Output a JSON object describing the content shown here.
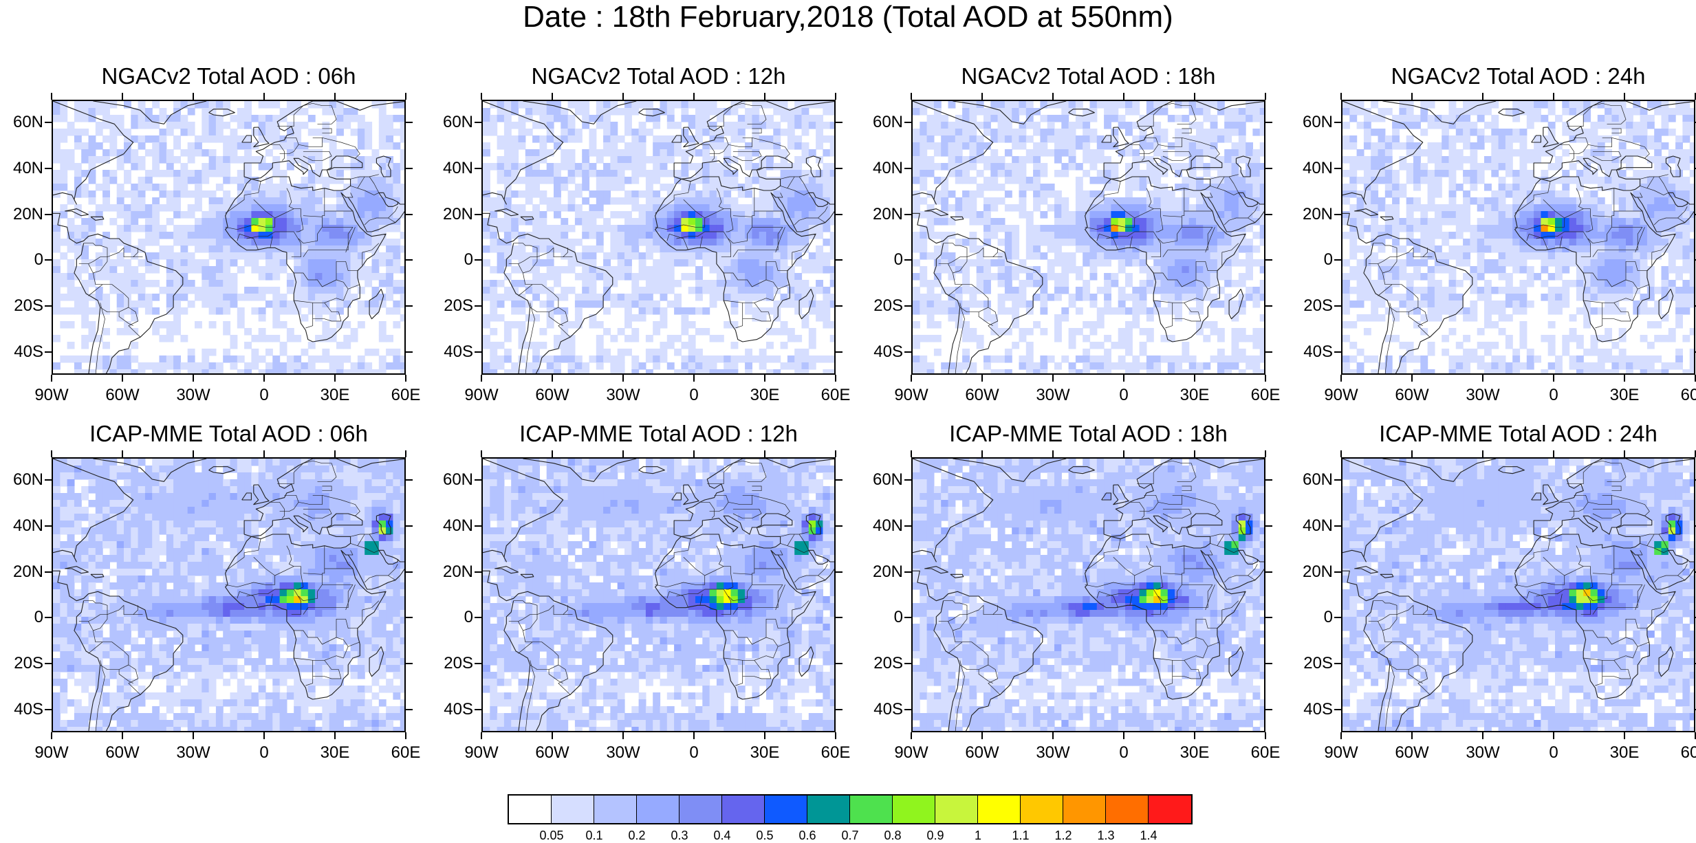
{
  "main_title": "Date : 18th February,2018 (Total AOD at 550nm)",
  "panels": [
    {
      "title": "NGACv2 Total AOD : 06h"
    },
    {
      "title": "NGACv2 Total AOD : 12h"
    },
    {
      "title": "NGACv2 Total AOD : 18h"
    },
    {
      "title": "NGACv2 Total AOD : 24h"
    },
    {
      "title": "ICAP-MME Total AOD : 06h"
    },
    {
      "title": "ICAP-MME Total AOD : 12h"
    },
    {
      "title": "ICAP-MME Total AOD : 18h"
    },
    {
      "title": "ICAP-MME Total AOD : 24h"
    }
  ],
  "lat_labels": [
    "60N",
    "40N",
    "20N",
    "0",
    "20S",
    "40S"
  ],
  "lon_labels": [
    "90W",
    "60W",
    "30W",
    "0",
    "30E",
    "60E"
  ],
  "colorbar": {
    "levels": [
      "0.05",
      "0.1",
      "0.2",
      "0.3",
      "0.4",
      "0.5",
      "0.6",
      "0.7",
      "0.8",
      "0.9",
      "1",
      "1.1",
      "1.2",
      "1.3",
      "1.4"
    ],
    "colors": [
      "#ffffff",
      "#d6deff",
      "#b4c3ff",
      "#96aaff",
      "#7f8ef5",
      "#6565ee",
      "#0f5aff",
      "#009696",
      "#4ee14e",
      "#90f41e",
      "#c8f53c",
      "#ffff00",
      "#ffc800",
      "#ff9600",
      "#ff6e00",
      "#ff1a1a"
    ]
  }
}
